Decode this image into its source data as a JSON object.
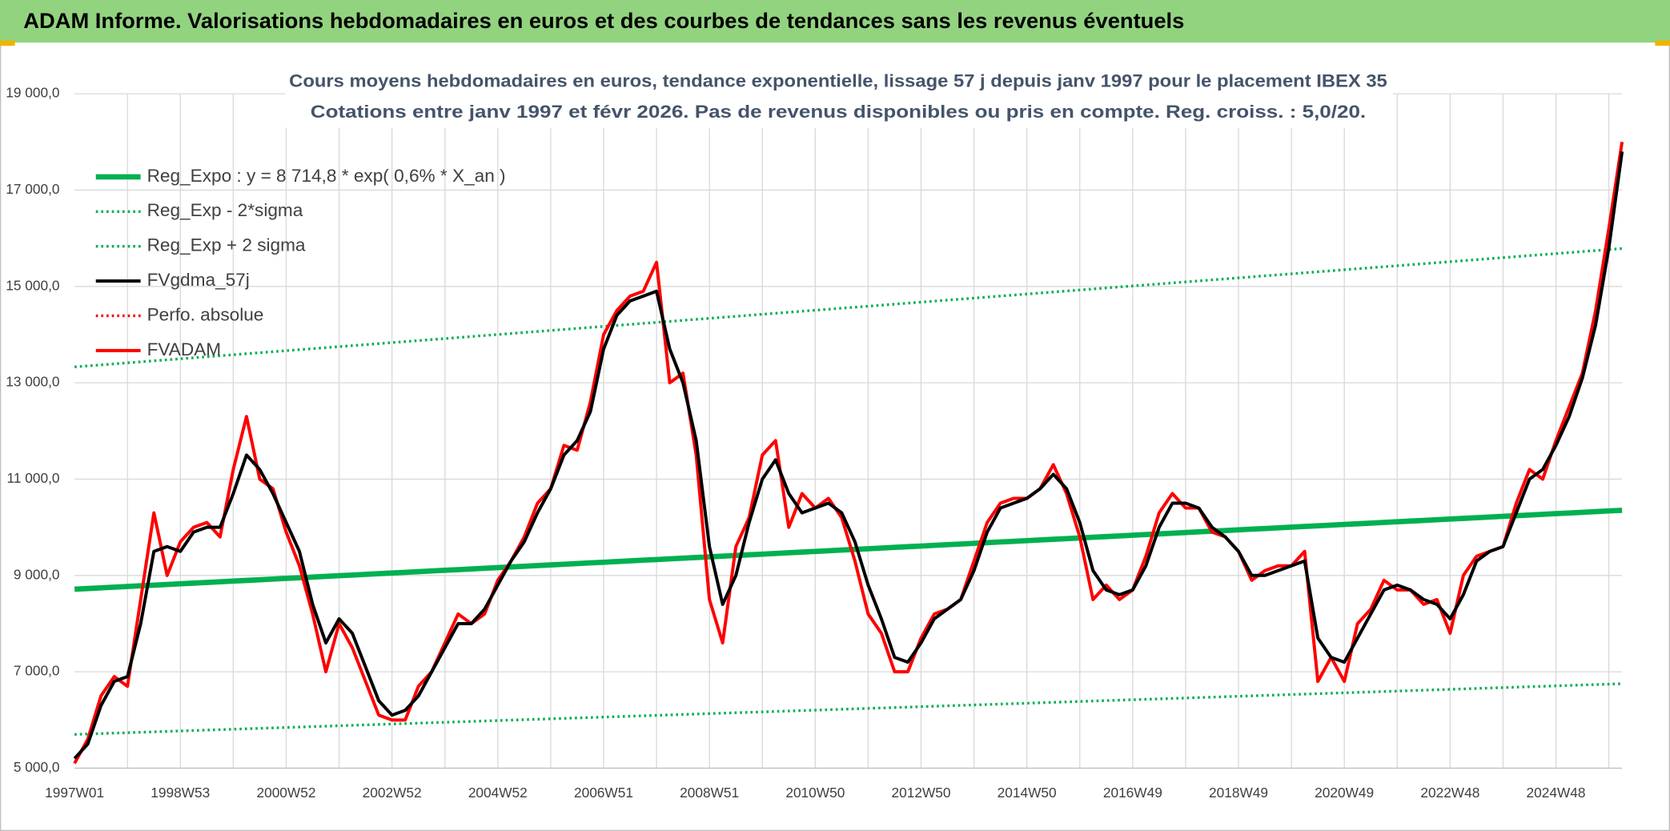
{
  "header": {
    "title": "ADAM Informe. Valorisations hebdomadaires en euros et des courbes de tendances sans les revenus éventuels"
  },
  "chart_data": {
    "type": "line",
    "title": "Cours moyens hebdomadaires en euros, tendance exponentielle, lissage 57 j depuis janv 1997 pour le placement IBEX 35",
    "subtitle": "Cotations entre janv 1997 et févr 2026. Pas de revenus disponibles ou pris en compte. Reg. croiss. : 5,0/20.",
    "categories": [
      "1997W01",
      null,
      null,
      null,
      null,
      null,
      null,
      null,
      "1998W53",
      null,
      null,
      null,
      null,
      null,
      null,
      null,
      "2000W52",
      null,
      null,
      null,
      null,
      null,
      null,
      null,
      "2002W52",
      null,
      null,
      null,
      null,
      null,
      null,
      null,
      "2004W52",
      null,
      null,
      null,
      null,
      null,
      null,
      null,
      "2006W51",
      null,
      null,
      null,
      null,
      null,
      null,
      null,
      "2008W51",
      null,
      null,
      null,
      null,
      null,
      null,
      null,
      "2010W50",
      null,
      null,
      null,
      null,
      null,
      null,
      null,
      "2012W50",
      null,
      null,
      null,
      null,
      null,
      null,
      null,
      "2014W50",
      null,
      null,
      null,
      null,
      null,
      null,
      null,
      "2016W49",
      null,
      null,
      null,
      null,
      null,
      null,
      null,
      "2018W49",
      null,
      null,
      null,
      null,
      null,
      null,
      null,
      "2020W49",
      null,
      null,
      null,
      null,
      null,
      null,
      null,
      "2022W48",
      null,
      null,
      null,
      null,
      null,
      null,
      null,
      "2024W48",
      null,
      null,
      null,
      null,
      null
    ],
    "ylim": [
      5000,
      19000
    ],
    "yticks": [
      {
        "value": 5000,
        "label": "5 000,0"
      },
      {
        "value": 7000,
        "label": "7 000,0"
      },
      {
        "value": 9000,
        "label": "9 000,0"
      },
      {
        "value": 11000,
        "label": "11 000,0"
      },
      {
        "value": 13000,
        "label": "13 000,0"
      },
      {
        "value": 15000,
        "label": "15 000,0"
      },
      {
        "value": 17000,
        "label": "17 000,0"
      },
      {
        "value": 19000,
        "label": "19 000,0"
      }
    ],
    "grid": true,
    "legend": "upper-left",
    "series": [
      {
        "name": "Reg_Expo : y = 8 714,8 * exp( 0,6% *  X_an )",
        "color": "#00b050",
        "style": "solid",
        "values": [
          8715,
          8729,
          8743,
          8757,
          8771,
          8785,
          8799,
          8813,
          8827,
          8841,
          8855,
          8869,
          8883,
          8897,
          8911,
          8925,
          8939,
          8953,
          8967,
          8981,
          8995,
          9009,
          9023,
          9037,
          9051,
          9065,
          9079,
          9093,
          9107,
          9121,
          9135,
          9149,
          9163,
          9177,
          9191,
          9205,
          9219,
          9233,
          9247,
          9261,
          9275,
          9289,
          9303,
          9317,
          9331,
          9345,
          9359,
          9373,
          9387,
          9401,
          9415,
          9429,
          9443,
          9457,
          9471,
          9485,
          9499,
          9513,
          9527,
          9541,
          9555,
          9569,
          9583,
          9597,
          9611,
          9625,
          9639,
          9653,
          9667,
          9681,
          9695,
          9709,
          9723,
          9737,
          9751,
          9765,
          9779,
          9793,
          9807,
          9821,
          9835,
          9849,
          9863,
          9877,
          9891,
          9905,
          9919,
          9933,
          9947,
          9961,
          9975,
          9989,
          10003,
          10017,
          10031,
          10045,
          10059,
          10073,
          10087,
          10101,
          10115,
          10129,
          10143,
          10157,
          10171,
          10185,
          10199,
          10213,
          10227,
          10241,
          10255,
          10269,
          10283,
          10297,
          10311,
          10325,
          10339,
          10353
        ]
      },
      {
        "name": "Reg_Exp - 2*sigma",
        "color": "#00b050",
        "style": "dotted",
        "values": [
          5700,
          5709,
          5718,
          5727,
          5736,
          5745,
          5754,
          5763,
          5772,
          5781,
          5790,
          5799,
          5808,
          5817,
          5826,
          5835,
          5844,
          5853,
          5862,
          5871,
          5880,
          5889,
          5898,
          5907,
          5916,
          5925,
          5934,
          5943,
          5952,
          5961,
          5970,
          5979,
          5988,
          5997,
          6006,
          6015,
          6024,
          6033,
          6042,
          6051,
          6060,
          6069,
          6078,
          6087,
          6096,
          6105,
          6114,
          6123,
          6132,
          6141,
          6150,
          6159,
          6168,
          6177,
          6186,
          6195,
          6204,
          6213,
          6222,
          6231,
          6240,
          6249,
          6258,
          6267,
          6276,
          6285,
          6294,
          6303,
          6312,
          6321,
          6330,
          6339,
          6348,
          6357,
          6366,
          6375,
          6384,
          6393,
          6402,
          6411,
          6420,
          6429,
          6438,
          6447,
          6456,
          6465,
          6474,
          6483,
          6492,
          6501,
          6510,
          6519,
          6528,
          6537,
          6546,
          6555,
          6564,
          6573,
          6582,
          6591,
          6600,
          6609,
          6618,
          6627,
          6636,
          6645,
          6654,
          6663,
          6672,
          6681,
          6690,
          6699,
          6708,
          6717,
          6726,
          6735,
          6744,
          6753
        ]
      },
      {
        "name": "Reg_Exp + 2 sigma",
        "color": "#00b050",
        "style": "dotted",
        "values": [
          13330,
          13351,
          13372,
          13393,
          13414,
          13435,
          13456,
          13477,
          13498,
          13519,
          13540,
          13561,
          13582,
          13603,
          13624,
          13645,
          13666,
          13687,
          13708,
          13729,
          13750,
          13771,
          13792,
          13813,
          13834,
          13855,
          13876,
          13897,
          13918,
          13939,
          13960,
          13981,
          14002,
          14023,
          14044,
          14065,
          14086,
          14107,
          14128,
          14149,
          14170,
          14191,
          14212,
          14233,
          14254,
          14275,
          14296,
          14317,
          14338,
          14359,
          14380,
          14401,
          14422,
          14443,
          14464,
          14485,
          14506,
          14527,
          14548,
          14569,
          14590,
          14611,
          14632,
          14653,
          14674,
          14695,
          14716,
          14737,
          14758,
          14779,
          14800,
          14821,
          14842,
          14863,
          14884,
          14905,
          14926,
          14947,
          14968,
          14989,
          15010,
          15031,
          15052,
          15073,
          15094,
          15115,
          15136,
          15157,
          15178,
          15199,
          15220,
          15241,
          15262,
          15283,
          15304,
          15325,
          15346,
          15367,
          15388,
          15409,
          15430,
          15451,
          15472,
          15493,
          15514,
          15535,
          15556,
          15577,
          15598,
          15619,
          15640,
          15661,
          15682,
          15703,
          15724,
          15745,
          15766,
          15787
        ]
      },
      {
        "name": "FVgdma_57j",
        "color": "#000000",
        "style": "solid",
        "values": [
          5200,
          5500,
          6300,
          6800,
          6900,
          8000,
          9500,
          9600,
          9500,
          9900,
          10000,
          10000,
          10700,
          11500,
          11200,
          10700,
          10100,
          9500,
          8400,
          7600,
          8100,
          7800,
          7100,
          6400,
          6100,
          6200,
          6500,
          7000,
          7500,
          8000,
          8000,
          8300,
          8800,
          9300,
          9700,
          10300,
          10800,
          11500,
          11800,
          12400,
          13700,
          14400,
          14700,
          14800,
          14900,
          13700,
          13000,
          11800,
          9600,
          8400,
          9000,
          10100,
          11000,
          11400,
          10700,
          10300,
          10400,
          10500,
          10300,
          9700,
          8800,
          8100,
          7300,
          7200,
          7600,
          8100,
          8300,
          8500,
          9100,
          9900,
          10400,
          10500,
          10600,
          10800,
          11100,
          10800,
          10100,
          9100,
          8700,
          8600,
          8700,
          9200,
          10000,
          10500,
          10500,
          10400,
          10000,
          9800,
          9500,
          9000,
          9000,
          9100,
          9200,
          9300,
          7700,
          7300,
          7200,
          7700,
          8200,
          8700,
          8800,
          8700,
          8500,
          8400,
          8100,
          8600,
          9300,
          9500,
          9600,
          10300,
          11000,
          11200,
          11700,
          12300,
          13100,
          14200,
          15800,
          17800
        ]
      },
      {
        "name": "Perfo. absolue",
        "color": "#ff0000",
        "style": "dotted",
        "values": [
          5100,
          5600,
          6500,
          6900,
          6700,
          8500,
          10300,
          9000,
          9700,
          10000,
          10100,
          9800,
          11200,
          12300,
          11000,
          10800,
          9900,
          9200,
          8200,
          7000,
          8000,
          7500,
          6800,
          6100,
          6000,
          6000,
          6700,
          7000,
          7600,
          8200,
          8000,
          8200,
          8900,
          9300,
          9800,
          10500,
          10800,
          11700,
          11600,
          12600,
          14000,
          14500,
          14800,
          14900,
          15500,
          13000,
          13200,
          11500,
          8500,
          7600,
          9600,
          10200,
          11500,
          11800,
          10000,
          10700,
          10400,
          10600,
          10200,
          9300,
          8200,
          7800,
          7000,
          7000,
          7700,
          8200,
          8300,
          8500,
          9300,
          10100,
          10500,
          10600,
          10600,
          10800,
          11300,
          10700,
          9800,
          8500,
          8800,
          8500,
          8700,
          9400,
          10300,
          10700,
          10400,
          10400,
          9900,
          9800,
          9500,
          8900,
          9100,
          9200,
          9200,
          9500,
          6800,
          7300,
          6800,
          8000,
          8300,
          8900,
          8700,
          8700,
          8400,
          8500,
          7800,
          9000,
          9400,
          9500,
          9600,
          10500,
          11200,
          11000,
          11800,
          12500,
          13200,
          14500,
          16200,
          18000
        ]
      },
      {
        "name": "FVADAM",
        "color": "#ff0000",
        "style": "solid",
        "values": [
          5100,
          5600,
          6500,
          6900,
          6700,
          8500,
          10300,
          9000,
          9700,
          10000,
          10100,
          9800,
          11200,
          12300,
          11000,
          10800,
          9900,
          9200,
          8200,
          7000,
          8000,
          7500,
          6800,
          6100,
          6000,
          6000,
          6700,
          7000,
          7600,
          8200,
          8000,
          8200,
          8900,
          9300,
          9800,
          10500,
          10800,
          11700,
          11600,
          12600,
          14000,
          14500,
          14800,
          14900,
          15500,
          13000,
          13200,
          11500,
          8500,
          7600,
          9600,
          10200,
          11500,
          11800,
          10000,
          10700,
          10400,
          10600,
          10200,
          9300,
          8200,
          7800,
          7000,
          7000,
          7700,
          8200,
          8300,
          8500,
          9300,
          10100,
          10500,
          10600,
          10600,
          10800,
          11300,
          10700,
          9800,
          8500,
          8800,
          8500,
          8700,
          9400,
          10300,
          10700,
          10400,
          10400,
          9900,
          9800,
          9500,
          8900,
          9100,
          9200,
          9200,
          9500,
          6800,
          7300,
          6800,
          8000,
          8300,
          8900,
          8700,
          8700,
          8400,
          8500,
          7800,
          9000,
          9400,
          9500,
          9600,
          10500,
          11200,
          11000,
          11800,
          12500,
          13200,
          14500,
          16200,
          18000
        ]
      }
    ]
  }
}
